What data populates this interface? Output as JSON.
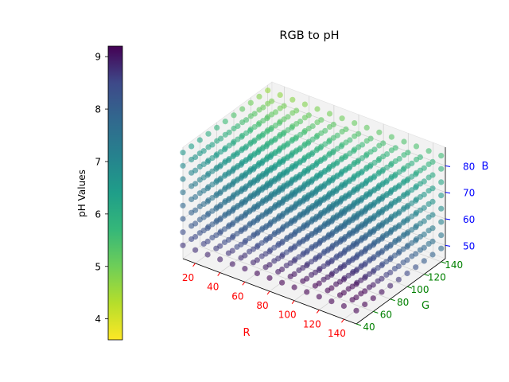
{
  "chart_data": {
    "type": "scatter",
    "projection": "3d",
    "title": "RGB to pH",
    "xlabel": "R",
    "ylabel": "G",
    "zlabel": "B",
    "x_range": [
      10,
      150
    ],
    "y_range": [
      40,
      145
    ],
    "z_range": [
      45,
      87
    ],
    "x_ticks": [
      "20",
      "40",
      "60",
      "80",
      "100",
      "120",
      "140"
    ],
    "y_ticks": [
      "40",
      "60",
      "80",
      "100",
      "120",
      "140"
    ],
    "z_ticks": [
      "50",
      "60",
      "70",
      "80"
    ],
    "x_color": "#ff0000",
    "y_color": "#008000",
    "z_color": "#0000ff",
    "grid": true,
    "points": {
      "r_values": [
        10,
        20,
        30,
        40,
        50,
        60,
        70,
        80,
        90,
        100,
        110,
        120,
        130,
        140,
        150
      ],
      "g_values": [
        40,
        50,
        60,
        70,
        80,
        90,
        100,
        110,
        120,
        130,
        140
      ],
      "b_values": [
        50,
        55,
        60,
        65,
        70,
        75,
        80,
        85
      ],
      "alpha": 0.6,
      "colormap": "viridis_r",
      "color_trend": "pH is highest (dark purple, ~9) near the front-bottom face at high R and low B, and decreases toward teal/green (~5–6) on the top and toward yellow-green (~4) at high G and low B."
    },
    "colorbar": {
      "label": "pH Values",
      "range": [
        3.6,
        9.2
      ],
      "ticks": [
        "4",
        "5",
        "6",
        "7",
        "8",
        "9"
      ],
      "tick_values": [
        4,
        5,
        6,
        7,
        8,
        9
      ]
    }
  }
}
